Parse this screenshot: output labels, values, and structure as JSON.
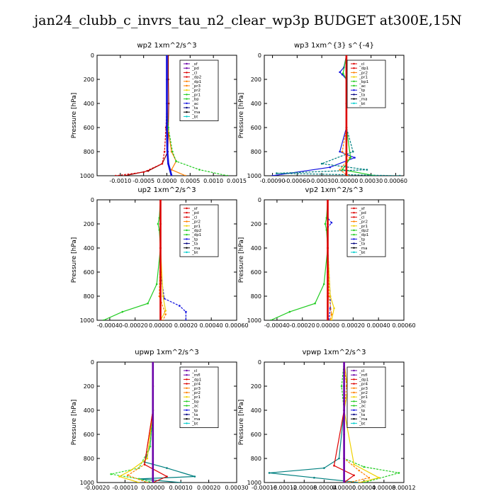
{
  "figure_title": "jan24_clubb_c_invrs_tau_n2_clear_wp3p  BUDGET at300E,15N",
  "colors": {
    "red": "#dd0000",
    "purple": "#6a00a8",
    "darkred": "#8b0000",
    "orange": "#ff8000",
    "yellow": "#f0d000",
    "green": "#22cc22",
    "lime": "#33dd33",
    "blue": "#1010e0",
    "teal": "#008080",
    "cyan": "#00cccc",
    "navy": "#000080",
    "black": "#000000"
  },
  "chart_data": [
    {
      "type": "line",
      "title": "wp2   1xm^2/s^3",
      "ylabel": "Pressure  [hPa]",
      "xlim": [
        -0.0015,
        0.0015
      ],
      "ylim": [
        1000,
        0
      ],
      "xticks": [
        -0.001,
        -0.0005,
        0.0,
        0.0005,
        0.001,
        0.0015
      ],
      "xtick_labels": [
        "-0.0010",
        "-0.0005",
        "0.0000",
        "0.0005",
        "0.0010",
        "0.0015"
      ],
      "yticks": [
        0,
        200,
        400,
        600,
        800,
        1000
      ],
      "legend": [
        "_sf",
        "_pd",
        "_cl",
        "_dp2",
        "_dp1",
        "_pr3",
        "_pr2",
        "_pr1",
        "_bp",
        "_ac",
        "_ta",
        "_ma",
        "_bt"
      ],
      "legend_colors": [
        "purple",
        "purple",
        "red",
        "red",
        "orange",
        "orange",
        "yellow",
        "green",
        "green",
        "blue",
        "navy",
        "black",
        "cyan"
      ],
      "series": [
        {
          "color": "darkred",
          "x": [
            3e-05,
            3e-05,
            4e-05,
            3e-05,
            2e-05,
            -0.0001,
            -0.0004,
            -0.0009
          ],
          "y": [
            0,
            200,
            400,
            600,
            800,
            900,
            960,
            1000
          ]
        },
        {
          "color": "red",
          "x": [
            0.0,
            0.0,
            0.0,
            -2e-05,
            -5e-05,
            -0.0001,
            -0.0005,
            -0.0011
          ],
          "y": [
            0,
            200,
            400,
            600,
            800,
            900,
            970,
            1000
          ]
        },
        {
          "color": "orange",
          "x": [
            0.0,
            0.0,
            1e-05,
            2e-05,
            0.0001,
            0.0002,
            0.0001,
            0.0004
          ],
          "y": [
            0,
            200,
            400,
            600,
            800,
            880,
            950,
            1000
          ]
        },
        {
          "color": "green",
          "x": [
            0.0,
            0.0,
            0.0,
            3e-05,
            0.00012,
            0.0002,
            0.0007,
            0.0013
          ],
          "y": [
            0,
            200,
            400,
            600,
            800,
            880,
            950,
            1000
          ]
        },
        {
          "color": "blue",
          "x": [
            0.0,
            0.0,
            0.0,
            0.0,
            1e-05,
            3e-05,
            0.0001
          ],
          "y": [
            0,
            200,
            400,
            600,
            800,
            900,
            1000
          ]
        }
      ]
    },
    {
      "type": "line",
      "title": "wp3   1xm^{3} s^{-4}",
      "ylabel": "Pressure  [hPa]",
      "xlim": [
        -0.001,
        0.0007
      ],
      "ylim": [
        1000,
        0
      ],
      "xticks": [
        -0.0009,
        -0.0006,
        -0.0003,
        0.0,
        0.0003,
        0.0006
      ],
      "xtick_labels": [
        "-0.00090",
        "-0.00060",
        "-0.00030",
        "0.00000",
        "0.00030",
        "0.00060"
      ],
      "yticks": [
        0,
        200,
        400,
        600,
        800,
        1000
      ],
      "legend": [
        "_cl",
        "_dp1",
        "_pr2",
        "_pr1",
        "_bp1",
        "_ac",
        "_tp",
        "_ta",
        "_ma",
        "_bt"
      ],
      "legend_colors": [
        "red",
        "red",
        "orange",
        "yellow",
        "green",
        "green",
        "blue",
        "navy",
        "black",
        "cyan"
      ],
      "series": [
        {
          "color": "blue",
          "x": [
            0.0,
            -3e-05,
            -8e-05,
            -5e-05,
            0.0,
            0.0,
            0.0,
            -8e-05,
            0.0001,
            -0.0002,
            -0.0009
          ],
          "y": [
            0,
            100,
            140,
            160,
            200,
            400,
            600,
            800,
            850,
            930,
            1000
          ]
        },
        {
          "color": "orange",
          "x": [
            0.0,
            0.0,
            0.0,
            0.0,
            -5e-05,
            4e-05,
            -8e-05,
            2e-05
          ],
          "y": [
            0,
            200,
            400,
            600,
            800,
            850,
            950,
            1000
          ]
        },
        {
          "color": "green",
          "x": [
            0.0,
            -4e-05,
            0.0,
            0.0,
            0.0,
            5e-05,
            -5e-05,
            0.00035
          ],
          "y": [
            0,
            150,
            200,
            400,
            600,
            850,
            950,
            1000
          ]
        },
        {
          "color": "teal",
          "x": [
            0.0,
            0.0,
            0.0,
            0.0,
            8e-05,
            -0.0003,
            0.00025,
            -0.00085,
            0.00065
          ],
          "y": [
            0,
            200,
            400,
            600,
            800,
            900,
            950,
            980,
            1000
          ]
        },
        {
          "color": "red",
          "x": [
            0.0,
            0.0,
            0.0,
            0.0,
            0.0,
            0.0
          ],
          "y": [
            0,
            200,
            400,
            600,
            800,
            1000
          ]
        }
      ]
    },
    {
      "type": "line",
      "title": "up2   1xm^2/s^3",
      "ylabel": "Pressure  [hPa]",
      "xlim": [
        -0.0005,
        0.0006
      ],
      "ylim": [
        1000,
        0
      ],
      "xticks": [
        -0.0004,
        -0.0002,
        0.0,
        0.0002,
        0.0004,
        0.0006
      ],
      "xtick_labels": [
        "-0.00040",
        "-0.00020",
        "0.00000",
        "0.00020",
        "0.00040",
        "0.00060"
      ],
      "yticks": [
        0,
        200,
        400,
        600,
        800,
        1000
      ],
      "legend": [
        "_sf",
        "_pd",
        "_cl",
        "_pr2",
        "_pr1",
        "_dp2",
        "_dp1",
        "_tp",
        "_ta",
        "_ma",
        "_bt"
      ],
      "legend_colors": [
        "red",
        "red",
        "red",
        "orange",
        "yellow",
        "green",
        "green",
        "blue",
        "navy",
        "black",
        "cyan"
      ],
      "series": [
        {
          "color": "green",
          "x": [
            0.0,
            -1e-05,
            -2e-05,
            -1e-05,
            0.0,
            -3e-05,
            -0.0001,
            -0.0003,
            -0.00045
          ],
          "y": [
            0,
            150,
            200,
            250,
            400,
            700,
            860,
            930,
            1000
          ]
        },
        {
          "color": "blue",
          "x": [
            0.0,
            0.0,
            0.0,
            0.0,
            3e-05,
            0.00015,
            0.0002,
            0.0002
          ],
          "y": [
            0,
            200,
            400,
            600,
            820,
            880,
            930,
            1000
          ]
        },
        {
          "color": "yellow",
          "x": [
            0.0,
            0.0,
            0.0,
            2e-05,
            4e-05,
            0.0
          ],
          "y": [
            0,
            200,
            400,
            800,
            920,
            1000
          ]
        },
        {
          "color": "orange",
          "x": [
            0.0,
            0.0,
            0.0,
            -1e-05,
            4e-05,
            2e-05
          ],
          "y": [
            0,
            200,
            400,
            800,
            950,
            1000
          ]
        },
        {
          "color": "red",
          "x": [
            0.0,
            0.0,
            0.0,
            0.0,
            0.0,
            0.0
          ],
          "y": [
            0,
            200,
            400,
            600,
            800,
            1000
          ]
        }
      ]
    },
    {
      "type": "line",
      "title": "vp2   1xm^2/s^3",
      "ylabel": "Pressure  [hPa]",
      "xlim": [
        -0.0005,
        0.0006
      ],
      "ylim": [
        1000,
        0
      ],
      "xticks": [
        -0.0004,
        -0.0002,
        0.0,
        0.0002,
        0.0004,
        0.0006
      ],
      "xtick_labels": [
        "-0.00040",
        "-0.00020",
        "0.00000",
        "0.00020",
        "0.00040",
        "0.00060"
      ],
      "yticks": [
        0,
        200,
        400,
        600,
        800,
        1000
      ],
      "legend": [
        "_sf",
        "_pd",
        "_cl",
        "_pr2",
        "_pr1",
        "_dp2",
        "_dp1",
        "_tp",
        "_ta",
        "_ma",
        "_bt"
      ],
      "legend_colors": [
        "red",
        "red",
        "red",
        "orange",
        "yellow",
        "green",
        "green",
        "blue",
        "navy",
        "black",
        "cyan"
      ],
      "series": [
        {
          "color": "green",
          "x": [
            0.0,
            -1e-05,
            -2e-05,
            -1e-05,
            0.0,
            -3e-05,
            -0.0001,
            -0.0003,
            -0.00045
          ],
          "y": [
            0,
            150,
            200,
            250,
            400,
            700,
            860,
            930,
            1000
          ]
        },
        {
          "color": "blue",
          "x": [
            0.0,
            0.0,
            3e-05,
            0.0,
            0.0,
            2e-05,
            2e-05,
            1e-05
          ],
          "y": [
            0,
            150,
            190,
            230,
            400,
            800,
            900,
            1000
          ]
        },
        {
          "color": "yellow",
          "x": [
            0.0,
            0.0,
            0.0,
            2e-05,
            5e-05,
            3e-05
          ],
          "y": [
            0,
            200,
            400,
            800,
            900,
            1000
          ]
        },
        {
          "color": "orange",
          "x": [
            0.0,
            0.0,
            0.0,
            1e-05,
            3e-05,
            2e-05
          ],
          "y": [
            0,
            200,
            400,
            800,
            950,
            1000
          ]
        },
        {
          "color": "red",
          "x": [
            0.0,
            0.0,
            0.0,
            0.0,
            0.0,
            0.0
          ],
          "y": [
            0,
            200,
            400,
            600,
            800,
            1000
          ]
        }
      ]
    },
    {
      "type": "line",
      "title": "upwp   1xm^2/s^3",
      "ylabel": "Pressure  [hPa]",
      "xlim": [
        -0.0002,
        0.0003
      ],
      "ylim": [
        1000,
        0
      ],
      "xticks": [
        -0.0002,
        -0.0001,
        0.0,
        0.0001,
        0.0002,
        0.0003
      ],
      "xtick_labels": [
        "-0.00020",
        "-0.00010",
        "0.00000",
        "0.00010",
        "0.00020",
        "0.00030"
      ],
      "yticks": [
        0,
        200,
        400,
        600,
        800,
        1000
      ],
      "legend": [
        "_cl",
        "_mfl",
        "_dp1",
        "_pr4",
        "_pr3",
        "_pr2",
        "_pr1",
        "_bp",
        "_ac",
        "_tp",
        "_ta",
        "_ma",
        "_bt"
      ],
      "legend_colors": [
        "purple",
        "purple",
        "red",
        "red",
        "orange",
        "orange",
        "yellow",
        "green",
        "green",
        "blue",
        "navy",
        "black",
        "cyan"
      ],
      "series": [
        {
          "color": "teal",
          "x": [
            0.0,
            0.0,
            0.0,
            -1e-05,
            -3e-05,
            5e-05,
            0.00015,
            -5e-05,
            0.0001
          ],
          "y": [
            0,
            200,
            400,
            700,
            830,
            880,
            950,
            970,
            1000
          ]
        },
        {
          "color": "lime",
          "x": [
            0.0,
            0.0,
            0.0,
            -1e-05,
            -5e-05,
            -0.00015,
            -5e-05,
            0.0
          ],
          "y": [
            0,
            200,
            400,
            700,
            880,
            930,
            970,
            1000
          ]
        },
        {
          "color": "yellow",
          "x": [
            0.0,
            0.0,
            0.0,
            -2e-05,
            -8e-05,
            -0.00012,
            -5e-05
          ],
          "y": [
            0,
            200,
            400,
            800,
            900,
            950,
            1000
          ]
        },
        {
          "color": "orange",
          "x": [
            0.0,
            0.0,
            0.0,
            -3e-05,
            -9e-05,
            -2e-05
          ],
          "y": [
            0,
            200,
            400,
            850,
            940,
            1000
          ]
        },
        {
          "color": "red",
          "x": [
            0.0,
            0.0,
            0.0,
            -3e-05,
            5e-05,
            0.0
          ],
          "y": [
            0,
            200,
            400,
            850,
            950,
            1000
          ]
        },
        {
          "color": "purple",
          "x": [
            0.0,
            0.0,
            0.0,
            0.0,
            0.0,
            0.0
          ],
          "y": [
            0,
            200,
            400,
            600,
            800,
            1000
          ]
        }
      ]
    },
    {
      "type": "line",
      "title": "vpwp   1xm^2/s^3",
      "ylabel": "Pressure  [hPa]",
      "xlim": [
        -0.00016,
        0.00012
      ],
      "ylim": [
        1000,
        0
      ],
      "xticks": [
        -0.00016,
        -0.00012,
        -8e-05,
        -4e-05,
        0.0,
        4e-05,
        8e-05,
        0.00012
      ],
      "xtick_labels": [
        "-0.00016",
        "-0.00012",
        "-0.00008",
        "-0.00004",
        "0.00000",
        "0.00004",
        "0.00008",
        "0.00012"
      ],
      "yticks": [
        0,
        200,
        400,
        600,
        800,
        1000
      ],
      "legend": [
        "_cl",
        "_mfl",
        "_dp1",
        "_pr4",
        "_pr3",
        "_pr2",
        "_pr1",
        "_bp",
        "_ac",
        "_tp",
        "_ta",
        "_ma",
        "_bt"
      ],
      "legend_colors": [
        "purple",
        "purple",
        "red",
        "red",
        "orange",
        "orange",
        "yellow",
        "green",
        "green",
        "blue",
        "navy",
        "black",
        "cyan"
      ],
      "series": [
        {
          "color": "teal",
          "x": [
            0.0,
            0.0,
            0.0,
            -1e-05,
            -4e-05,
            -0.00015,
            -6e-05,
            3e-05
          ],
          "y": [
            0,
            200,
            400,
            800,
            880,
            920,
            960,
            1000
          ]
        },
        {
          "color": "green",
          "x": [
            0.0,
            -5e-06,
            0.0,
            0.0,
            4e-05,
            0.00011,
            4e-05
          ],
          "y": [
            0,
            200,
            400,
            800,
            870,
            920,
            1000
          ]
        },
        {
          "color": "yellow",
          "x": [
            0.0,
            5e-06,
            8e-06,
            0.0,
            2e-05,
            7e-05,
            3e-05
          ],
          "y": [
            0,
            150,
            220,
            400,
            850,
            960,
            1000
          ]
        },
        {
          "color": "orange",
          "x": [
            0.0,
            5e-06,
            0.0,
            0.0,
            3e-05,
            5e-05,
            1e-05
          ],
          "y": [
            0,
            200,
            400,
            800,
            900,
            960,
            1000
          ]
        },
        {
          "color": "red",
          "x": [
            0.0,
            0.0,
            0.0,
            -2e-05,
            2e-05,
            0.0
          ],
          "y": [
            0,
            200,
            400,
            860,
            940,
            1000
          ]
        },
        {
          "color": "purple",
          "x": [
            0.0,
            0.0,
            0.0,
            0.0,
            0.0,
            0.0
          ],
          "y": [
            0,
            200,
            400,
            600,
            800,
            1000
          ]
        }
      ]
    }
  ]
}
